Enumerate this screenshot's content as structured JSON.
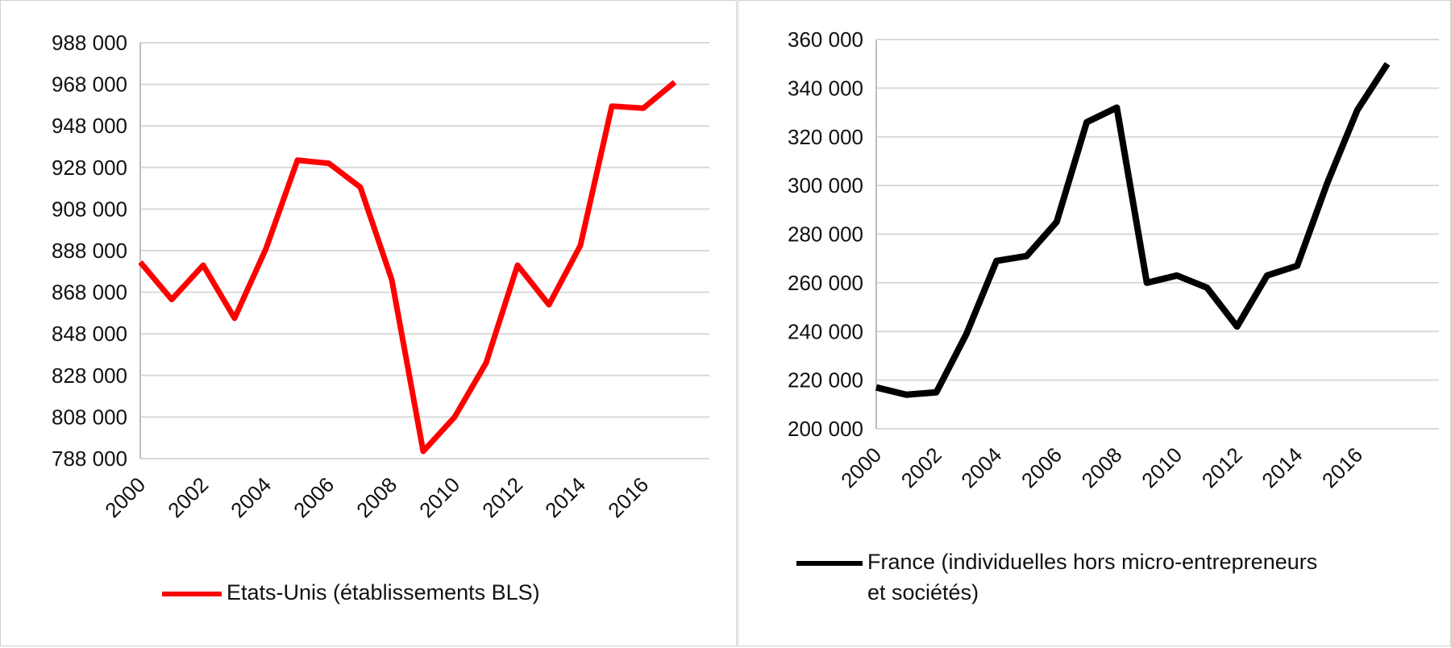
{
  "chart_data": [
    {
      "type": "line",
      "title": "",
      "xlabel": "",
      "ylabel": "",
      "x": [
        2000,
        2001,
        2002,
        2003,
        2004,
        2005,
        2006,
        2007,
        2008,
        2009,
        2010,
        2011,
        2012,
        2013,
        2014,
        2015,
        2016,
        2017
      ],
      "x_tick_labels": [
        "2000",
        "2002",
        "2004",
        "2006",
        "2008",
        "2010",
        "2012",
        "2014",
        "2016"
      ],
      "y_tick_values": [
        788000,
        808000,
        828000,
        848000,
        868000,
        888000,
        908000,
        928000,
        948000,
        968000,
        988000
      ],
      "y_tick_labels": [
        "788 000",
        "808 000",
        "828 000",
        "848 000",
        "868 000",
        "888 000",
        "908 000",
        "928 000",
        "948 000",
        "968 000",
        "988 000"
      ],
      "ylim": [
        788000,
        988000
      ],
      "grid": true,
      "legend_position": "bottom",
      "series": [
        {
          "name": "Etats-Unis (établissements BLS)",
          "color": "#ff0000",
          "values": [
            882500,
            864500,
            881000,
            855500,
            889000,
            931500,
            930000,
            918500,
            874000,
            791500,
            808000,
            834000,
            881000,
            862000,
            890500,
            957500,
            956500,
            969000
          ]
        }
      ]
    },
    {
      "type": "line",
      "title": "",
      "xlabel": "",
      "ylabel": "",
      "x": [
        2000,
        2001,
        2002,
        2003,
        2004,
        2005,
        2006,
        2007,
        2008,
        2009,
        2010,
        2011,
        2012,
        2013,
        2014,
        2015,
        2016,
        2017
      ],
      "x_tick_labels": [
        "2000",
        "2002",
        "2004",
        "2006",
        "2008",
        "2010",
        "2012",
        "2014",
        "2016"
      ],
      "y_tick_values": [
        200000,
        220000,
        240000,
        260000,
        280000,
        300000,
        320000,
        340000,
        360000
      ],
      "y_tick_labels": [
        "200 000",
        "220 000",
        "240 000",
        "260 000",
        "280 000",
        "300 000",
        "320 000",
        "340 000",
        "360 000"
      ],
      "ylim": [
        200000,
        360000
      ],
      "grid": true,
      "legend_position": "bottom",
      "series": [
        {
          "name": "France (individuelles hors micro-entrepreneurs et sociétés)",
          "color": "#000000",
          "legend_lines": [
            "France (individuelles hors micro-entrepreneurs",
            "et sociétés)"
          ],
          "values": [
            217000,
            214000,
            215000,
            239000,
            269000,
            271000,
            285000,
            326000,
            332000,
            260000,
            263000,
            258000,
            242000,
            263000,
            267000,
            301000,
            331000,
            350000
          ]
        }
      ]
    }
  ]
}
